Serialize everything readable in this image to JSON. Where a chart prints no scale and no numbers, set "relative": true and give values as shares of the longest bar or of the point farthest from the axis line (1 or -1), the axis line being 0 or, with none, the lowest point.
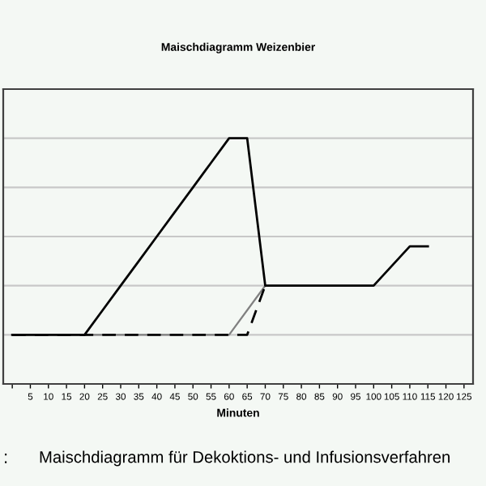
{
  "chart_data": {
    "type": "line",
    "title": "Maischdiagramm Weizenbier",
    "xlabel": "Minuten",
    "categories": [
      null,
      "5",
      "10",
      "15",
      "20",
      "25",
      "30",
      "35",
      "40",
      "45",
      "50",
      "55",
      "60",
      "65",
      "70",
      "75",
      "80",
      "85",
      "90",
      "95",
      "100",
      "105",
      "110",
      "115",
      "120",
      "125"
    ],
    "relative": true,
    "grid": "y",
    "legend": false,
    "series": [
      {
        "color": "#000000",
        "line_style": "solid",
        "values": [
          0.2,
          0.2,
          0.2,
          0.2,
          0.2,
          0.3,
          0.4,
          0.5,
          0.6,
          0.7,
          0.8,
          0.9,
          1.0,
          1.0,
          0.4,
          0.4,
          0.4,
          0.4,
          0.4,
          0.4,
          0.4,
          0.48,
          0.56,
          0.56,
          null,
          null
        ]
      },
      {
        "color": "#000000",
        "line_style": "dashed",
        "values": [
          0.2,
          0.2,
          0.2,
          0.2,
          0.2,
          0.2,
          0.2,
          0.2,
          0.2,
          0.2,
          0.2,
          0.2,
          0.2,
          0.2,
          0.4,
          null,
          null,
          null,
          null,
          null,
          null,
          null,
          null,
          null,
          null,
          null
        ]
      },
      {
        "color": "#808080",
        "line_style": "solid",
        "values": [
          0.2,
          0.2,
          0.2,
          0.2,
          0.2,
          0.2,
          0.2,
          0.2,
          0.2,
          0.2,
          0.2,
          0.2,
          0.2,
          0.3,
          0.4,
          null,
          null,
          null,
          null,
          null,
          null,
          null,
          null,
          null,
          null,
          null
        ]
      }
    ],
    "annotations": [
      ":",
      "Maischdiagramm für Dekoktions- und Infusionsverfahren"
    ]
  }
}
